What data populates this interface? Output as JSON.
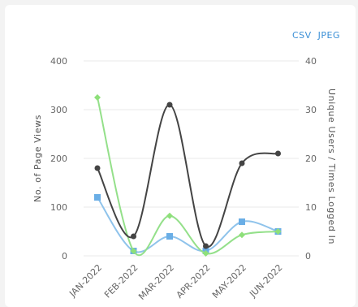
{
  "exports": {
    "csv": "CSV",
    "jpeg": "JPEG"
  },
  "colors": {
    "page_views": "#444444",
    "unique_users": "#8fc3eb",
    "times_logged_in": "#94e08a",
    "users_marker": "#6aaee6",
    "logged_marker": "#8ee07a",
    "grid": "#e9e9e9"
  },
  "chart_data": {
    "type": "line",
    "categories": [
      "JAN-2022",
      "FEB-2022",
      "MAR-2022",
      "APR-2022",
      "MAY-2022",
      "JUN-2022"
    ],
    "ylabel_left": "No. of Page Views",
    "ylabel_right": "Unique Users / Times Logged In",
    "ylim_left": [
      0,
      400
    ],
    "ylim_right": [
      0,
      40
    ],
    "yticks_left": [
      "0",
      "100",
      "200",
      "300",
      "400"
    ],
    "yticks_right": [
      "0",
      "10",
      "20",
      "30",
      "40"
    ],
    "grid": true,
    "series": [
      {
        "axis": "left",
        "marker": "circle",
        "values": [
          180,
          40,
          310,
          20,
          190,
          210
        ]
      },
      {
        "axis": "right",
        "marker": "square",
        "values": [
          12,
          1,
          4,
          1,
          7,
          5
        ]
      },
      {
        "axis": "right",
        "marker": "diamond",
        "values": [
          32.5,
          1,
          8.2,
          0.5,
          4.3,
          5
        ]
      }
    ]
  }
}
